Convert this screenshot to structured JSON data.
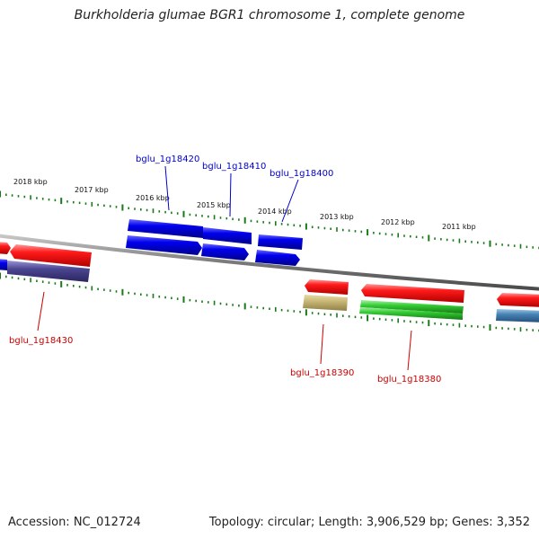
{
  "title": "Burkholderia glumae BGR1 chromosome 1, complete genome",
  "footer": {
    "accession": "Accession: NC_012724",
    "topology": "Topology: circular; Length: 3,906,529 bp; Genes: 3,352"
  },
  "colors": {
    "backbone": "#808080",
    "tick": "#1a7a1a",
    "upper_label": "#0000cc",
    "lower_label": "#cc0000"
  },
  "kbp_labels": [
    "2018 kbp",
    "2017 kbp",
    "2016 kbp",
    "2015 kbp",
    "2014 kbp",
    "2013 kbp",
    "2012 kbp",
    "2011 kbp"
  ],
  "gene_labels": {
    "upper": [
      "bglu_1g18420",
      "bglu_1g18410",
      "bglu_1g18400"
    ],
    "lower": [
      "bglu_1g18430",
      "bglu_1g18390",
      "bglu_1g18380"
    ]
  }
}
